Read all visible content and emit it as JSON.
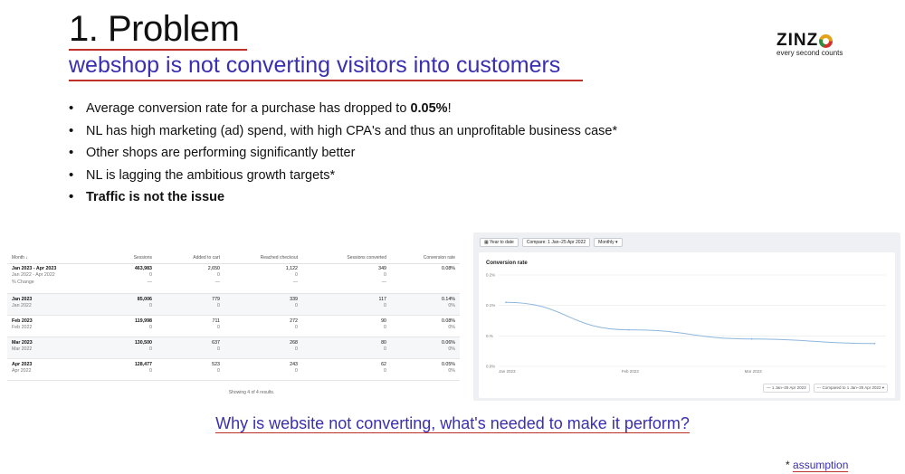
{
  "slide": {
    "title": "1. Problem",
    "subtitle": "webshop is not converting visitors into customers"
  },
  "logo": {
    "word": "ZINZ",
    "tagline": "every second counts"
  },
  "bullets": [
    {
      "pre": "Average conversion rate for a purchase has dropped to ",
      "bold": "0.05%",
      "post": "!"
    },
    {
      "text": "NL has high marketing (ad) spend, with high CPA's and thus an unprofitable business case*"
    },
    {
      "text": "Other shops are performing significantly better"
    },
    {
      "text": "NL is lagging the ambitious growth targets*"
    },
    {
      "bold": "Traffic is not the issue"
    }
  ],
  "table": {
    "headers": [
      "Month ↓",
      "Sessions",
      "Added to cart",
      "Reached checkout",
      "Sessions converted",
      "Conversion rate"
    ],
    "groups": [
      {
        "rows": [
          [
            "Jan 2023 - Apr 2023",
            "463,983",
            "2,650",
            "1,122",
            "349",
            "0.08%"
          ],
          [
            "Jan 2022 - Apr 2022",
            "0",
            "0",
            "0",
            "0",
            ""
          ],
          [
            "% Change",
            "—",
            "—",
            "—",
            "—",
            ""
          ]
        ]
      },
      {
        "rows": [
          [
            "Jan 2023",
            "85,006",
            "779",
            "339",
            "117",
            "0.14%"
          ],
          [
            "Jan 2022",
            "0",
            "0",
            "0",
            "0",
            "0%"
          ]
        ]
      },
      {
        "rows": [
          [
            "Feb 2023",
            "119,998",
            "711",
            "272",
            "90",
            "0.08%"
          ],
          [
            "Feb 2022",
            "0",
            "0",
            "0",
            "0",
            "0%"
          ]
        ]
      },
      {
        "rows": [
          [
            "Mar 2023",
            "130,500",
            "637",
            "268",
            "80",
            "0.06%"
          ],
          [
            "Mar 2022",
            "0",
            "0",
            "0",
            "0",
            "0%"
          ]
        ]
      },
      {
        "rows": [
          [
            "Apr 2023",
            "128,477",
            "523",
            "243",
            "62",
            "0.05%"
          ],
          [
            "Apr 2022",
            "0",
            "0",
            "0",
            "0",
            "0%"
          ]
        ]
      }
    ],
    "footer": "Showing 4 of 4 results."
  },
  "analytics_toolbar": {
    "range_button": "Year to date",
    "compare_button": "Compare: 1 Jan–25 Apr 2022",
    "interval_select": "Monthly"
  },
  "chart_data": {
    "type": "line",
    "title": "Conversion rate",
    "y_ticks": [
      "0.2%",
      "0.1%",
      "0.%",
      "0.0%"
    ],
    "x_ticks": [
      "Jan 2023",
      "Feb 2023",
      "Mar 2023"
    ],
    "ylim": [
      0,
      0.2
    ],
    "x": [
      "Jan 2023",
      "Feb 2023",
      "Mar 2023",
      "Apr 2023"
    ],
    "series": [
      {
        "name": "1 Jan–25 Apr 2023",
        "values": [
          0.14,
          0.08,
          0.06,
          0.05
        ],
        "color": "#8fb7dd"
      }
    ],
    "legend": [
      "1 Jan–25 Apr 2023",
      "Compared to 1 Jan–25 Apr 2022"
    ],
    "grid": true
  },
  "question": "Why is website not converting, what's needed to make it perform?",
  "assumption": {
    "star": "* ",
    "label": "assumption"
  },
  "colors": {
    "accent": "#3a2fb0",
    "underline": "#c0302a",
    "line": "#8fb7dd"
  }
}
